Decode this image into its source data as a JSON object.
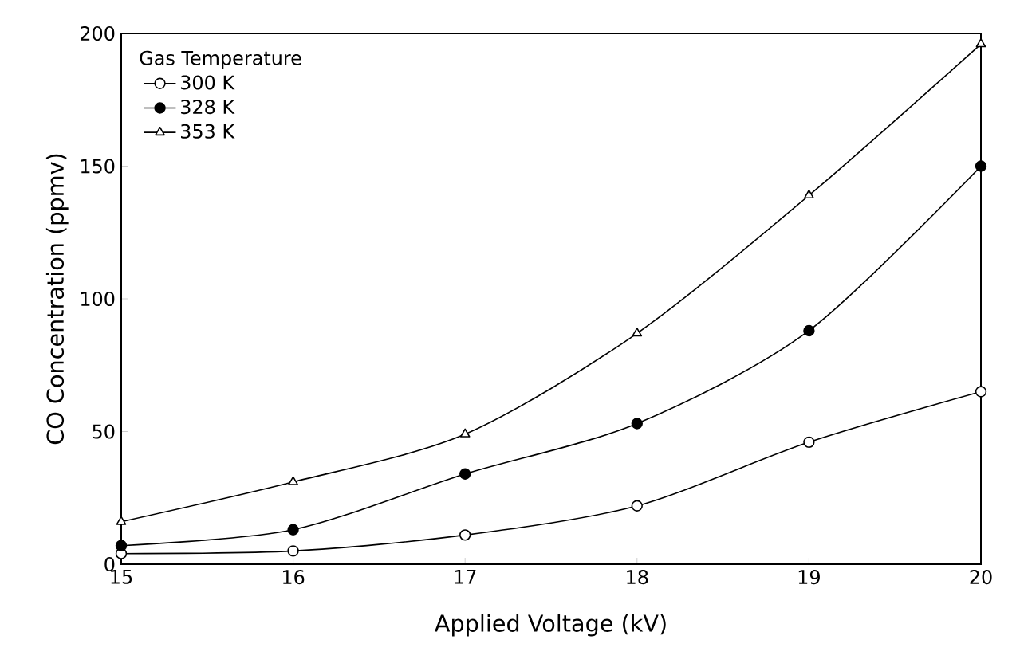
{
  "chart_data": {
    "type": "line",
    "xlabel": "Applied Voltage (kV)",
    "ylabel": "CO Concentration (ppmv)",
    "legend_title": "Gas Temperature",
    "x": [
      15,
      16,
      17,
      18,
      19,
      20
    ],
    "series": [
      {
        "name": "300 K",
        "color": "#000000",
        "marker": "circle",
        "values": [
          4,
          5,
          11,
          22,
          46,
          65
        ]
      },
      {
        "name": "328 K",
        "color": "#000000",
        "marker": "circle",
        "values": [
          7,
          13,
          34,
          53,
          88,
          150
        ]
      },
      {
        "name": "353 K",
        "color": "#000000",
        "marker": "triangle",
        "values": [
          16,
          31,
          49,
          87,
          139,
          196
        ]
      }
    ],
    "xlim": [
      15,
      20
    ],
    "ylim": [
      0,
      200
    ],
    "xticks": [
      15,
      16,
      17,
      18,
      19,
      20
    ],
    "yticks": [
      0,
      50,
      100,
      150,
      200
    ],
    "grid": false,
    "legend": "top left",
    "line_style": "solid"
  }
}
